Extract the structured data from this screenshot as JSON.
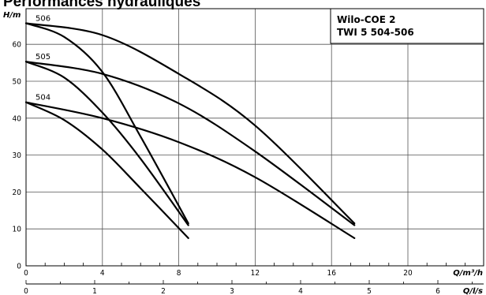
{
  "page_title": "Performances hydrauliques",
  "chart_data": {
    "type": "line",
    "title": "Performances hydrauliques",
    "legend": {
      "line1": "Wilo-COE 2",
      "line2": "TWI 5 504-506",
      "placement": "top-right"
    },
    "ylabel": "H/m",
    "xlabel": "Q/m³/h",
    "x2label": "Q/l/s",
    "ylim": [
      0,
      70
    ],
    "xlim": [
      0,
      24
    ],
    "x2lim": [
      0,
      6.6667
    ],
    "y_ticks": [
      "0",
      "10",
      "20",
      "30",
      "40",
      "50",
      "60"
    ],
    "x_ticks": [
      "0",
      "4",
      "8",
      "12",
      "16",
      "20"
    ],
    "x2_ticks": [
      "0",
      "1",
      "2",
      "3",
      "4",
      "5",
      "6"
    ],
    "grid": true,
    "series": [
      {
        "name": "504",
        "group": "504",
        "x": [
          0,
          2,
          4,
          6,
          8.5
        ],
        "y": [
          44.3,
          39.5,
          31.5,
          21,
          7.5
        ]
      },
      {
        "name": "",
        "group": "504",
        "x": [
          0,
          4,
          8,
          12,
          17.2
        ],
        "y": [
          44.3,
          40,
          33.5,
          24,
          7.5
        ]
      },
      {
        "name": "505",
        "group": "505",
        "x": [
          0,
          2,
          4,
          6,
          8.5
        ],
        "y": [
          55.3,
          51,
          41.5,
          29,
          11
        ]
      },
      {
        "name": "",
        "group": "505",
        "x": [
          0,
          4,
          8,
          12,
          17.2
        ],
        "y": [
          55.3,
          52,
          44,
          31,
          11
        ]
      },
      {
        "name": "506",
        "group": "506",
        "x": [
          0,
          2,
          4,
          6,
          8.5
        ],
        "y": [
          65.7,
          62,
          52.5,
          35,
          11.5
        ]
      },
      {
        "name": "",
        "group": "506",
        "x": [
          0,
          4,
          8,
          12,
          17.2
        ],
        "y": [
          65.7,
          62.5,
          52,
          38,
          11.5
        ]
      }
    ]
  }
}
